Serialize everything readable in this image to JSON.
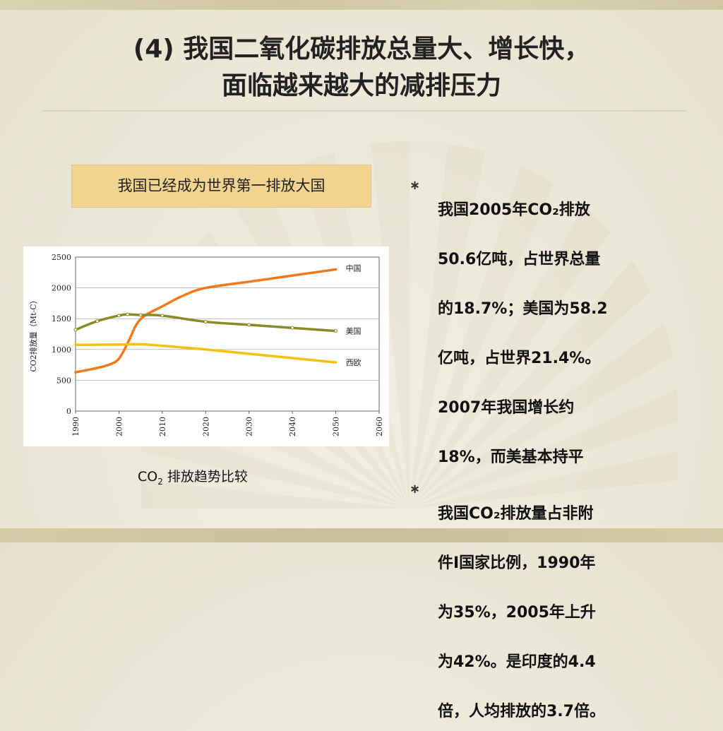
{
  "slide": {
    "title_line1": "(4) 我国二氧化碳排放总量大、增长快，",
    "title_line2": "面临越来越大的减排压力",
    "callout": "我国已经成为世界第一排放大国",
    "caption_prefix": "CO",
    "caption_sub": "2",
    "caption_suffix": " 排放趋势比较"
  },
  "bullets": [
    {
      "mark": "∗",
      "lines": [
        "我国2005年CO₂排放",
        "50.6亿吨，占世界总量",
        "的18.7%；美国为58.2",
        "亿吨，占世界21.4%。",
        "2007年我国增长约",
        "18%，而美基本持平"
      ]
    },
    {
      "mark": "∗",
      "lines": [
        "我国CO₂排放量占非附",
        "件I国家比例，1990年",
        "为35%，2005年上升",
        "为42%。是印度的4.4",
        "倍，人均排放的3.7倍。"
      ]
    }
  ],
  "chart_data": {
    "type": "line",
    "title": "",
    "ylabel": "CO2排放量（Mt-C）",
    "xlabel": "",
    "xlim": [
      1990,
      2060
    ],
    "ylim": [
      0,
      2500
    ],
    "x_ticks": [
      "1990",
      "2000",
      "2010",
      "2020",
      "2030",
      "2040",
      "2050",
      "2060"
    ],
    "y_ticks": [
      "0",
      "500",
      "1000",
      "1500",
      "2000",
      "2500"
    ],
    "grid": true,
    "series": [
      {
        "name": "中国",
        "color": "#f07a1a",
        "x": [
          1990,
          1995,
          1998,
          2000,
          2002,
          2004,
          2006,
          2010,
          2015,
          2020,
          2030,
          2040,
          2050
        ],
        "y": [
          630,
          700,
          760,
          850,
          1100,
          1400,
          1550,
          1700,
          1880,
          2000,
          2100,
          2200,
          2300
        ]
      },
      {
        "name": "美国",
        "color": "#8a8a28",
        "x": [
          1990,
          1995,
          2000,
          2002,
          2005,
          2010,
          2020,
          2030,
          2040,
          2050
        ],
        "y": [
          1320,
          1460,
          1550,
          1570,
          1560,
          1550,
          1450,
          1400,
          1350,
          1300
        ]
      },
      {
        "name": "西欧",
        "color": "#f2c20f",
        "x": [
          1990,
          2000,
          2005,
          2010,
          2020,
          2030,
          2040,
          2050
        ],
        "y": [
          1075,
          1080,
          1085,
          1060,
          1000,
          930,
          860,
          790
        ]
      }
    ]
  }
}
